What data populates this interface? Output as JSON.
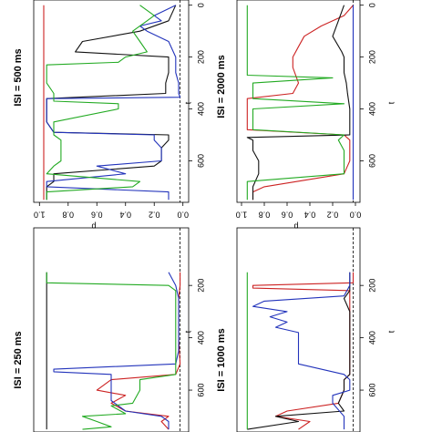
{
  "chart_data": [
    {
      "type": "line",
      "title": "ISI = 500 ms",
      "xlabel": "t",
      "ylabel": "p",
      "xlim": [
        -20,
        760
      ],
      "ylim": [
        -0.04,
        1.04
      ],
      "x_ticks": [
        0,
        200,
        400,
        600
      ],
      "y_ticks": [
        0.0,
        0.2,
        0.4,
        0.6,
        0.8,
        1.0
      ],
      "y_tick_labels": [
        "0.0",
        "0.2",
        "0.4",
        "0.6",
        "0.8",
        "1.0"
      ],
      "reference_line": {
        "y": 0.02,
        "style": "dashed"
      },
      "series": [
        {
          "color": "#cc2222",
          "x": [
            0,
            200,
            400,
            600,
            750
          ],
          "y": [
            0.97,
            0.97,
            0.97,
            0.97,
            0.97
          ]
        },
        {
          "color": "#111111",
          "x": [
            0,
            60,
            100,
            140,
            180,
            200,
            260,
            300,
            340,
            360,
            400,
            450,
            490,
            500,
            520,
            550,
            600,
            620,
            650,
            680,
            700,
            720,
            750
          ],
          "y": [
            0.05,
            0.1,
            0.3,
            0.7,
            0.75,
            0.1,
            0.1,
            0.12,
            0.12,
            0.95,
            0.95,
            0.95,
            0.9,
            0.1,
            0.1,
            0.15,
            0.15,
            0.2,
            0.9,
            0.9,
            0.95,
            0.95,
            0.95
          ]
        },
        {
          "color": "#2233bb",
          "x": [
            0,
            40,
            60,
            80,
            100,
            140,
            200,
            260,
            300,
            340,
            355,
            360,
            400,
            450,
            490,
            500,
            520,
            550,
            600,
            620,
            650,
            680,
            700,
            720,
            750
          ],
          "y": [
            0.05,
            0.2,
            0.15,
            0.3,
            0.25,
            0.1,
            0.05,
            0.05,
            0.03,
            0.03,
            0.02,
            0.95,
            0.95,
            0.95,
            0.9,
            0.2,
            0.2,
            0.15,
            0.15,
            0.6,
            0.4,
            0.95,
            0.95,
            0.1,
            0.1
          ]
        },
        {
          "color": "#22aa22",
          "x": [
            0,
            40,
            60,
            100,
            140,
            180,
            200,
            220,
            230,
            260,
            300,
            340,
            370,
            380,
            400,
            450,
            500,
            520,
            550,
            600,
            620,
            650,
            680,
            700,
            720,
            750
          ],
          "y": [
            0.3,
            0.2,
            0.25,
            0.35,
            0.3,
            0.25,
            0.4,
            0.45,
            0.95,
            0.95,
            0.95,
            0.9,
            0.9,
            0.45,
            0.45,
            0.9,
            0.9,
            0.85,
            0.85,
            0.85,
            0.9,
            0.95,
            0.3,
            0.35,
            0.95,
            0.95
          ]
        }
      ]
    },
    {
      "type": "line",
      "title": "ISI = 250 ms",
      "xlabel": "t",
      "ylabel": "p",
      "xlim": [
        -20,
        760
      ],
      "ylim": [
        -0.04,
        1.04
      ],
      "x_ticks": [
        200,
        400,
        600
      ],
      "y_ticks": [],
      "y_tick_labels": [],
      "reference_line": {
        "y": 0.02,
        "style": "dashed"
      },
      "series": [
        {
          "color": "#111111",
          "x": [
            150,
            200,
            300,
            400,
            500,
            600,
            700,
            750
          ],
          "y": [
            0.95,
            0.95,
            0.95,
            0.95,
            0.95,
            0.95,
            0.95,
            0.95
          ]
        },
        {
          "color": "#cc2222",
          "x": [
            150,
            200,
            250,
            300,
            400,
            500,
            540,
            560,
            600,
            620,
            650,
            680,
            700,
            720,
            750
          ],
          "y": [
            0.02,
            0.02,
            0.03,
            0.03,
            0.03,
            0.02,
            0.05,
            0.5,
            0.6,
            0.4,
            0.5,
            0.4,
            0.1,
            0.15,
            0.1
          ]
        },
        {
          "color": "#2233bb",
          "x": [
            150,
            200,
            250,
            300,
            350,
            400,
            450,
            500,
            520,
            530,
            540,
            560,
            600,
            640,
            680,
            700,
            720,
            750
          ],
          "y": [
            0.1,
            0.05,
            0.03,
            0.03,
            0.03,
            0.03,
            0.03,
            0.05,
            0.9,
            0.9,
            0.5,
            0.5,
            0.5,
            0.5,
            0.4,
            0.15,
            0.1,
            0.1
          ]
        },
        {
          "color": "#22aa22",
          "x": [
            150,
            190,
            200,
            220,
            300,
            400,
            500,
            540,
            560,
            600,
            650,
            660,
            690,
            700,
            720,
            740,
            750
          ],
          "y": [
            0.95,
            0.95,
            0.1,
            0.05,
            0.05,
            0.05,
            0.05,
            0.05,
            0.3,
            0.3,
            0.35,
            0.5,
            0.4,
            0.7,
            0.6,
            0.5,
            0.7
          ]
        }
      ]
    },
    {
      "type": "line",
      "title": "ISI = 2000 ms",
      "xlabel": "t",
      "ylabel": "p",
      "xlim": [
        -20,
        760
      ],
      "ylim": [
        -0.04,
        1.04
      ],
      "x_ticks": [
        0,
        200,
        400,
        600
      ],
      "y_ticks": [
        0.0,
        0.2,
        0.4,
        0.6,
        0.8,
        1.0
      ],
      "y_tick_labels": [
        "0.0",
        "0.2",
        "0.4",
        "0.6",
        "0.8",
        "1.0"
      ],
      "reference_line": {
        "y": 0.02,
        "style": "dashed"
      },
      "series": [
        {
          "color": "#cc2222",
          "x": [
            0,
            40,
            80,
            120,
            160,
            200,
            240,
            300,
            340,
            360,
            400,
            480,
            500,
            520,
            560,
            600,
            650,
            700,
            720,
            750
          ],
          "y": [
            0.02,
            0.1,
            0.3,
            0.45,
            0.5,
            0.55,
            0.55,
            0.5,
            0.55,
            0.95,
            0.95,
            0.95,
            0.1,
            0.05,
            0.05,
            0.05,
            0.1,
            0.8,
            0.9,
            0.9
          ]
        },
        {
          "color": "#111111",
          "x": [
            0,
            60,
            120,
            180,
            200,
            260,
            300,
            340,
            400,
            450,
            500,
            510,
            520,
            560,
            600,
            650,
            700,
            720,
            750
          ],
          "y": [
            0.1,
            0.15,
            0.2,
            0.12,
            0.1,
            0.1,
            0.08,
            0.07,
            0.05,
            0.05,
            0.05,
            0.95,
            0.9,
            0.9,
            0.85,
            0.85,
            0.9,
            0.9,
            0.9
          ]
        },
        {
          "color": "#2233bb",
          "x": [
            0,
            100,
            200,
            300,
            400,
            500,
            600,
            650,
            700,
            750
          ],
          "y": [
            0.02,
            0.02,
            0.02,
            0.02,
            0.02,
            0.02,
            0.02,
            0.02,
            0.02,
            0.02
          ]
        },
        {
          "color": "#22aa22",
          "x": [
            0,
            100,
            200,
            270,
            280,
            300,
            360,
            380,
            400,
            480,
            500,
            520,
            560,
            600,
            650,
            680,
            700,
            720,
            750
          ],
          "y": [
            0.95,
            0.95,
            0.95,
            0.95,
            0.2,
            0.9,
            0.9,
            0.1,
            0.9,
            0.9,
            0.1,
            0.15,
            0.1,
            0.1,
            0.1,
            0.95,
            0.95,
            0.95,
            0.95
          ]
        }
      ]
    },
    {
      "type": "line",
      "title": "ISI = 1000 ms",
      "xlabel": "t",
      "ylabel": "p",
      "xlim": [
        -20,
        760
      ],
      "ylim": [
        -0.04,
        1.04
      ],
      "x_ticks": [
        200,
        400,
        600
      ],
      "y_ticks": [],
      "y_tick_labels": [],
      "reference_line": {
        "y": 0.02,
        "style": "dashed"
      },
      "series": [
        {
          "color": "#cc2222",
          "x": [
            150,
            190,
            200,
            210,
            220,
            280,
            300,
            340,
            380,
            400,
            450,
            520,
            540,
            560,
            600,
            650,
            680,
            700,
            720,
            750
          ],
          "y": [
            0.02,
            0.02,
            0.9,
            0.9,
            0.05,
            0.05,
            0.05,
            0.05,
            0.05,
            0.05,
            0.05,
            0.05,
            0.05,
            0.1,
            0.1,
            0.15,
            0.6,
            0.7,
            0.4,
            0.5
          ]
        },
        {
          "color": "#111111",
          "x": [
            150,
            200,
            220,
            250,
            300,
            350,
            400,
            450,
            500,
            540,
            560,
            600,
            650,
            680,
            700,
            720,
            750
          ],
          "y": [
            0.05,
            0.05,
            0.05,
            0.1,
            0.05,
            0.05,
            0.05,
            0.05,
            0.05,
            0.05,
            0.1,
            0.1,
            0.15,
            0.1,
            0.7,
            0.5,
            0.95
          ]
        },
        {
          "color": "#2233bb",
          "x": [
            150,
            200,
            240,
            260,
            280,
            300,
            320,
            340,
            360,
            380,
            400,
            450,
            500,
            540,
            560,
            600,
            620,
            650,
            700,
            720,
            750
          ],
          "y": [
            0.05,
            0.05,
            0.1,
            0.8,
            0.9,
            0.6,
            0.75,
            0.6,
            0.7,
            0.5,
            0.5,
            0.5,
            0.5,
            0.1,
            0.05,
            0.05,
            0.2,
            0.2,
            0.1,
            0.1,
            0.1
          ]
        },
        {
          "color": "#22aa22",
          "x": [
            150,
            200,
            300,
            400,
            500,
            600,
            700,
            750
          ],
          "y": [
            0.95,
            0.95,
            0.95,
            0.95,
            0.95,
            0.95,
            0.95,
            0.95
          ]
        }
      ]
    }
  ]
}
